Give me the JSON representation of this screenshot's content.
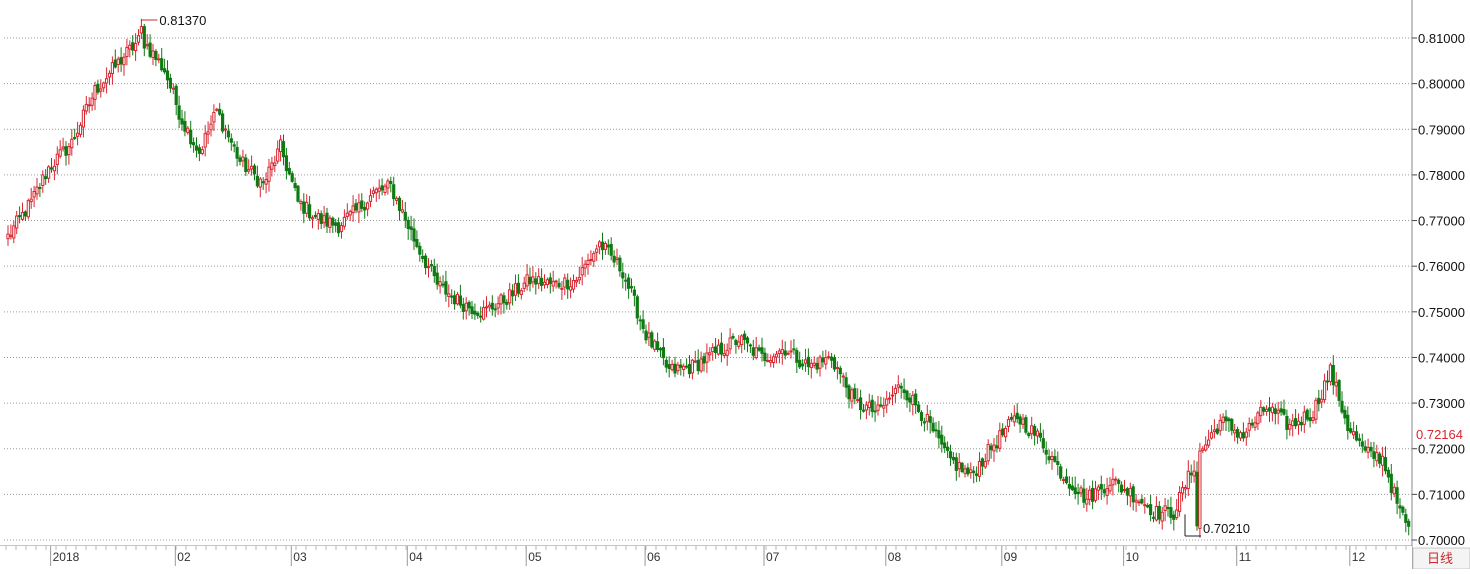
{
  "chart_data": {
    "type": "candlestick",
    "title": "",
    "xlabel": "",
    "ylabel": "",
    "timeframe_label": "日线",
    "ylim": [
      0.6995,
      0.818
    ],
    "y_ticks": [
      "0.81000",
      "0.80000",
      "0.79000",
      "0.78000",
      "0.77000",
      "0.76000",
      "0.75000",
      "0.74000",
      "0.73000",
      "0.72000",
      "0.71000",
      "0.70000"
    ],
    "x_ticks": [
      "2018",
      "02",
      "03",
      "04",
      "05",
      "06",
      "07",
      "08",
      "09",
      "10",
      "11",
      "12"
    ],
    "grid": "horizontal-dotted",
    "colors": {
      "up": "#d9252f",
      "down": "#0f7a13",
      "grid": "#9a9a9a",
      "current_price": "#d9252f"
    },
    "current_price": "0.72164",
    "high_annotation": {
      "label": "0.81370",
      "value": 0.8137
    },
    "low_annotation": {
      "label": "0.70210",
      "value": 0.7021
    },
    "anchor_closes": [
      [
        0,
        0.7665
      ],
      [
        8,
        0.774
      ],
      [
        14,
        0.7815
      ],
      [
        22,
        0.787
      ],
      [
        30,
        0.7985
      ],
      [
        40,
        0.806
      ],
      [
        46,
        0.81
      ],
      [
        54,
        0.803
      ],
      [
        60,
        0.792
      ],
      [
        66,
        0.785
      ],
      [
        72,
        0.794
      ],
      [
        80,
        0.783
      ],
      [
        88,
        0.778
      ],
      [
        94,
        0.786
      ],
      [
        100,
        0.774
      ],
      [
        108,
        0.77
      ],
      [
        114,
        0.769
      ],
      [
        120,
        0.772
      ],
      [
        126,
        0.776
      ],
      [
        132,
        0.7775
      ],
      [
        140,
        0.766
      ],
      [
        148,
        0.756
      ],
      [
        156,
        0.752
      ],
      [
        164,
        0.75
      ],
      [
        172,
        0.753
      ],
      [
        180,
        0.757
      ],
      [
        188,
        0.756
      ],
      [
        196,
        0.757
      ],
      [
        204,
        0.765
      ],
      [
        212,
        0.759
      ],
      [
        220,
        0.745
      ],
      [
        228,
        0.737
      ],
      [
        236,
        0.738
      ],
      [
        244,
        0.741
      ],
      [
        252,
        0.744
      ],
      [
        260,
        0.74
      ],
      [
        268,
        0.742
      ],
      [
        276,
        0.738
      ],
      [
        284,
        0.74
      ],
      [
        292,
        0.73
      ],
      [
        300,
        0.728
      ],
      [
        308,
        0.734
      ],
      [
        316,
        0.727
      ],
      [
        324,
        0.718
      ],
      [
        332,
        0.714
      ],
      [
        340,
        0.721
      ],
      [
        348,
        0.727
      ],
      [
        356,
        0.722
      ],
      [
        364,
        0.714
      ],
      [
        372,
        0.709
      ],
      [
        380,
        0.713
      ],
      [
        388,
        0.71
      ],
      [
        396,
        0.706
      ],
      [
        402,
        0.706
      ],
      [
        410,
        0.718
      ],
      [
        418,
        0.726
      ],
      [
        426,
        0.723
      ],
      [
        434,
        0.729
      ],
      [
        442,
        0.725
      ],
      [
        450,
        0.728
      ],
      [
        456,
        0.737
      ],
      [
        462,
        0.725
      ],
      [
        468,
        0.719
      ],
      [
        474,
        0.718
      ],
      [
        480,
        0.706
      ],
      [
        483,
        0.703
      ]
    ]
  }
}
